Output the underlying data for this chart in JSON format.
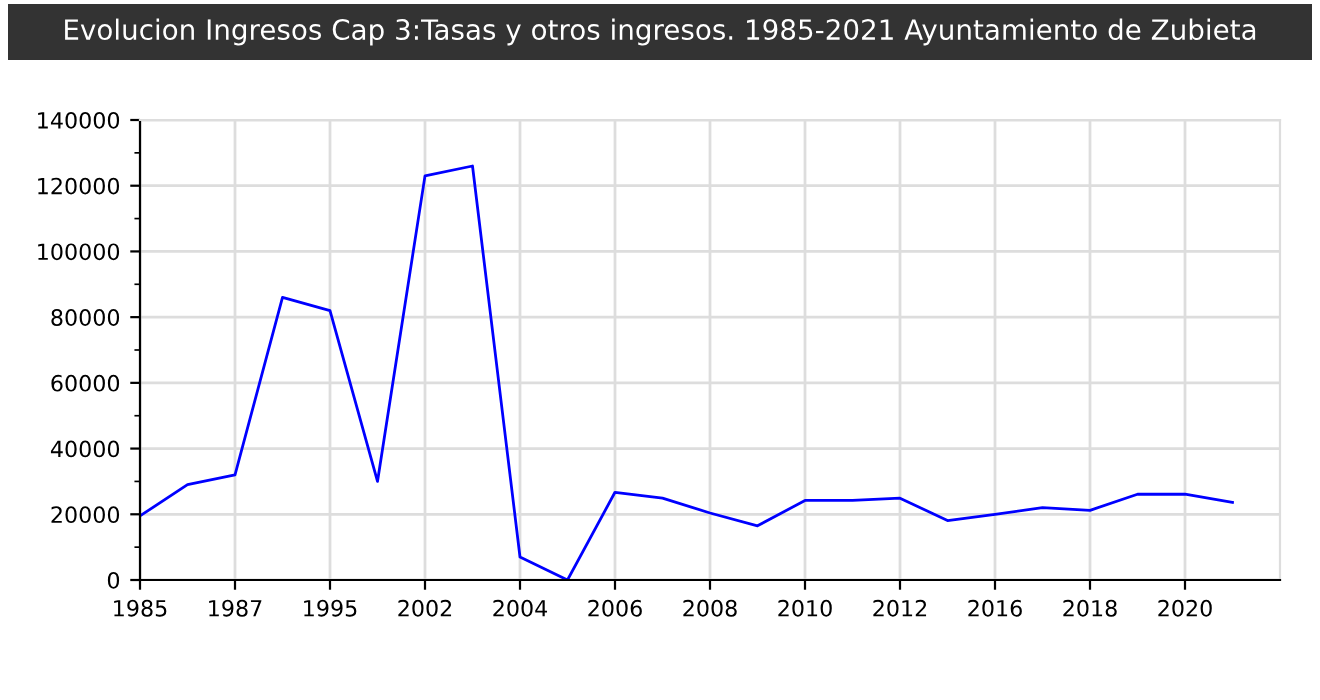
{
  "chart_data": {
    "type": "line",
    "title": "Evolucion Ingresos Cap 3:Tasas y otros ingresos. 1985-2021 Ayuntamiento de Zubieta",
    "categories": [
      "1985",
      null,
      "1987",
      null,
      "1995",
      null,
      "2002",
      null,
      "2004",
      null,
      "2006",
      null,
      "2008",
      null,
      "2010",
      null,
      "2012",
      null,
      "2016",
      null,
      "2018",
      null,
      "2020",
      null
    ],
    "series": [
      {
        "color": "#0000ff",
        "values": [
          19500,
          29000,
          32000,
          86000,
          82000,
          30000,
          123000,
          126000,
          7000,
          0,
          26700,
          24900,
          20400,
          16500,
          24200,
          24200,
          24900,
          18100,
          20000,
          22000,
          21200,
          26100,
          26100,
          23600
        ]
      }
    ],
    "ylim": [
      0,
      140000
    ],
    "yticks": [
      0,
      {
        "value": 10000,
        "label": null
      },
      20000,
      {
        "value": 30000,
        "label": null
      },
      40000,
      {
        "value": 50000,
        "label": null
      },
      60000,
      {
        "value": 70000,
        "label": null
      },
      80000,
      {
        "value": 90000,
        "label": null
      },
      100000,
      {
        "value": 110000,
        "label": null
      },
      120000,
      {
        "value": 130000,
        "label": null
      },
      140000
    ],
    "grid": true,
    "legend": false,
    "marker": "none",
    "line_style": "solid"
  }
}
